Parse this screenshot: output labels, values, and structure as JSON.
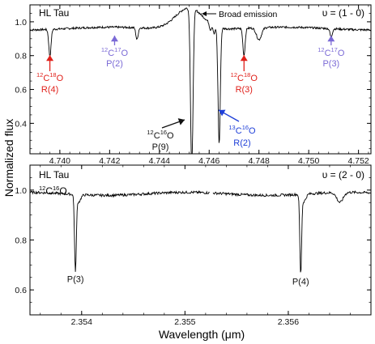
{
  "figure": {
    "ylabel": "Normalized flux",
    "xlabel": "Wavelength (μm)"
  },
  "chart_data": [
    {
      "type": "line",
      "panel": "top",
      "source": "HL Tau",
      "band": "υ = (1 - 0)",
      "xlim": [
        4.7388,
        4.7525
      ],
      "ylim": [
        0.22,
        1.1
      ],
      "xticks": [
        "4.740",
        "4.742",
        "4.744",
        "4.746",
        "4.748",
        "4.750",
        "4.752"
      ],
      "yticks": [
        "0.4",
        "0.6",
        "0.8",
        "1.0"
      ],
      "ytick_values": [
        0.4,
        0.6,
        0.8,
        1.0
      ],
      "xtick_values": [
        4.74,
        4.742,
        4.744,
        4.746,
        4.748,
        4.75,
        4.752
      ],
      "continuum": 0.96,
      "broad_emission": {
        "center": 4.7452,
        "peak": 1.1
      },
      "absorption_lines": [
        {
          "x": 4.7396,
          "depth": 0.8
        },
        {
          "x": 4.7431,
          "depth": 0.89
        },
        {
          "x": 4.7453,
          "depth": 0.0
        },
        {
          "x": 4.7464,
          "depth": 0.27
        },
        {
          "x": 4.7474,
          "depth": 0.8
        },
        {
          "x": 4.7509,
          "depth": 0.91
        }
      ],
      "annotations": [
        {
          "iso_mass": "12",
          "mol_mass": "18",
          "label": "R(4)",
          "color": "#e0201a",
          "x": 4.7396
        },
        {
          "iso_mass": "12",
          "mol_mass": "17",
          "label": "P(2)",
          "color": "#7b6ad6",
          "x": 4.7422
        },
        {
          "iso_mass": "12",
          "mol_mass": "16",
          "label": "P(9)",
          "color": "#111111",
          "x": 4.7453
        },
        {
          "iso_mass": "13",
          "mol_mass": "16",
          "label": "R(2)",
          "color": "#1e3fd8",
          "x": 4.7464
        },
        {
          "iso_mass": "12",
          "mol_mass": "18",
          "label": "R(3)",
          "color": "#e0201a",
          "x": 4.7474
        },
        {
          "iso_mass": "12",
          "mol_mass": "17",
          "label": "P(3)",
          "color": "#7b6ad6",
          "x": 4.7509
        }
      ],
      "broad_emission_label": "Broad emission"
    },
    {
      "type": "line",
      "panel": "bottom",
      "source": "HL Tau",
      "species": {
        "mass": "12",
        "mol_mass": "16",
        "text": "CO"
      },
      "band": "υ = (2 - 0)",
      "xlim": [
        2.3535,
        2.3568
      ],
      "ylim": [
        0.5,
        1.1
      ],
      "xticks": [
        "2.354",
        "2.355",
        "2.356"
      ],
      "xtick_values": [
        2.354,
        2.355,
        2.356
      ],
      "yticks": [
        "0.6",
        "0.8",
        "1.0"
      ],
      "ytick_values": [
        0.6,
        0.8,
        1.0
      ],
      "continuum": 0.985,
      "absorption_lines": [
        {
          "x": 2.35394,
          "depth": 0.68,
          "label": "P(3)"
        },
        {
          "x": 2.35612,
          "depth": 0.67,
          "label": "P(4)"
        }
      ],
      "gap": [
        2.35524,
        2.35527
      ]
    }
  ]
}
